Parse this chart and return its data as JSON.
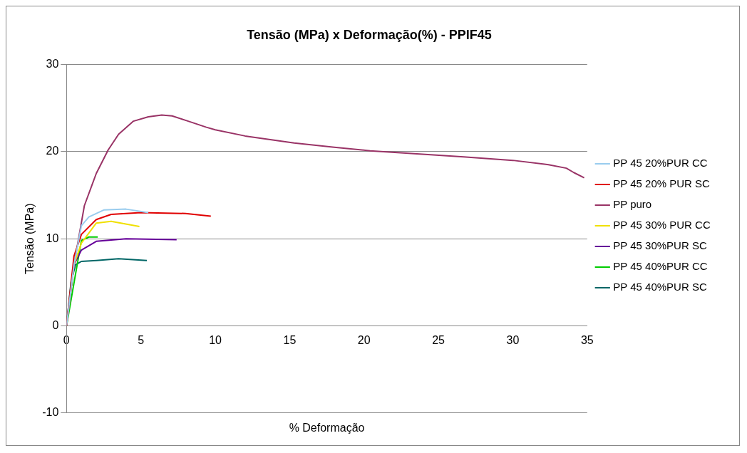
{
  "chart_data": {
    "type": "line",
    "title": "Tensão (MPa) x Deformação(%) - PPIF45",
    "xlabel": "% Deformação",
    "ylabel": "Tensão (MPa)",
    "xlim": [
      0,
      35
    ],
    "xticks": [
      0,
      5,
      10,
      15,
      20,
      25,
      30,
      35
    ],
    "ylim": [
      -10,
      30
    ],
    "yticks": [
      -10,
      0,
      10,
      20,
      30
    ],
    "grid": "y",
    "legend": "right",
    "marker": "none",
    "line_style": "solid",
    "series": [
      {
        "name": "PP 45 20%PUR CC",
        "color": "#99ccee",
        "x": [
          0,
          0.5,
          1,
          1.5,
          2.5,
          4,
          5.5
        ],
        "values": [
          0,
          7,
          11.5,
          12.5,
          13.3,
          13.4,
          13
        ]
      },
      {
        "name": "PP 45 20% PUR SC",
        "color": "#e00000",
        "x": [
          0,
          0.5,
          1,
          2,
          3,
          5,
          8,
          9.7
        ],
        "values": [
          0,
          8,
          10.5,
          12.2,
          12.8,
          13,
          12.9,
          12.6
        ]
      },
      {
        "name": "PP puro",
        "color": "#993366",
        "x": [
          0,
          0.5,
          1.2,
          2,
          2.8,
          3.5,
          4.5,
          5.5,
          6.4,
          7.1,
          8,
          9.4,
          10,
          12,
          15.3,
          18,
          20.4,
          23,
          26.7,
          30,
          32.4,
          33.6,
          34.1,
          34.8
        ],
        "values": [
          0,
          7,
          13.8,
          17.5,
          20.2,
          22,
          23.5,
          24,
          24.2,
          24.1,
          23.6,
          22.8,
          22.5,
          21.8,
          21,
          20.5,
          20.1,
          19.8,
          19.4,
          19,
          18.5,
          18.1,
          17.6,
          17
        ]
      },
      {
        "name": "PP 45 30% PUR CC",
        "color": "#f0e000",
        "x": [
          0,
          0.5,
          1,
          2,
          3,
          4.9
        ],
        "values": [
          0,
          7,
          9.5,
          11.8,
          12,
          11.4
        ]
      },
      {
        "name": "PP 45 30%PUR SC",
        "color": "#660099",
        "x": [
          0,
          0.5,
          1,
          2,
          4,
          7.4
        ],
        "values": [
          0,
          7,
          8.7,
          9.7,
          10,
          9.9
        ]
      },
      {
        "name": "PP 45 40%PUR CC",
        "color": "#00cc00",
        "x": [
          0,
          1,
          1.5,
          2.1
        ],
        "values": [
          0,
          9.8,
          10.2,
          10.2
        ]
      },
      {
        "name": "PP 45 40%PUR SC",
        "color": "#006666",
        "x": [
          0,
          0.3,
          0.6,
          1,
          2,
          3.5,
          5.4
        ],
        "values": [
          0,
          5,
          7,
          7.4,
          7.5,
          7.7,
          7.5
        ]
      }
    ]
  }
}
